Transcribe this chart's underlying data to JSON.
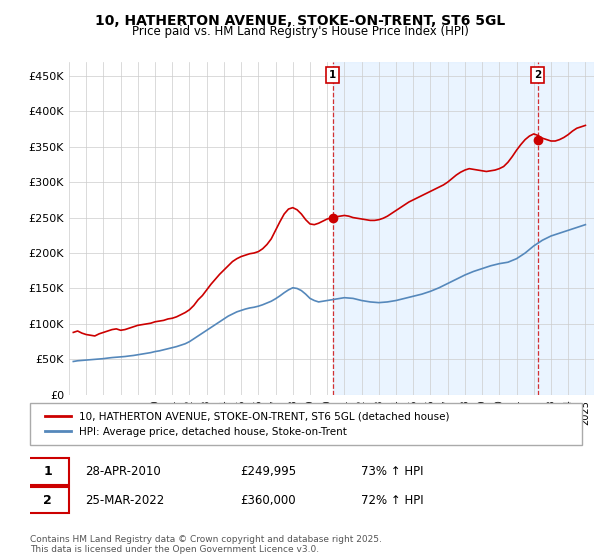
{
  "title_line1": "10, HATHERTON AVENUE, STOKE-ON-TRENT, ST6 5GL",
  "title_line2": "Price paid vs. HM Land Registry's House Price Index (HPI)",
  "legend_label1": "10, HATHERTON AVENUE, STOKE-ON-TRENT, ST6 5GL (detached house)",
  "legend_label2": "HPI: Average price, detached house, Stoke-on-Trent",
  "footnote": "Contains HM Land Registry data © Crown copyright and database right 2025.\nThis data is licensed under the Open Government Licence v3.0.",
  "annotation1": {
    "label": "1",
    "date": "28-APR-2010",
    "price": "£249,995",
    "pct": "73% ↑ HPI",
    "x_year": 2010.32,
    "y_val": 249995
  },
  "annotation2": {
    "label": "2",
    "date": "25-MAR-2022",
    "price": "£360,000",
    "pct": "72% ↑ HPI",
    "x_year": 2022.23,
    "y_val": 360000
  },
  "red_line_color": "#cc0000",
  "blue_line_color": "#5588bb",
  "shade_color": "#ddeeff",
  "dashed_line_color": "#cc0000",
  "ylim": [
    0,
    470000
  ],
  "yticks": [
    0,
    50000,
    100000,
    150000,
    200000,
    250000,
    300000,
    350000,
    400000,
    450000
  ],
  "ytick_labels": [
    "£0",
    "£50K",
    "£100K",
    "£150K",
    "£200K",
    "£250K",
    "£300K",
    "£350K",
    "£400K",
    "£450K"
  ],
  "xlim_start": 1995.0,
  "xlim_end": 2025.5,
  "red_data": {
    "years": [
      1995.25,
      1995.5,
      1995.75,
      1996.0,
      1996.25,
      1996.5,
      1996.75,
      1997.0,
      1997.25,
      1997.5,
      1997.75,
      1998.0,
      1998.25,
      1998.5,
      1998.75,
      1999.0,
      1999.25,
      1999.5,
      1999.75,
      2000.0,
      2000.25,
      2000.5,
      2000.75,
      2001.0,
      2001.25,
      2001.5,
      2001.75,
      2002.0,
      2002.25,
      2002.5,
      2002.75,
      2003.0,
      2003.25,
      2003.5,
      2003.75,
      2004.0,
      2004.25,
      2004.5,
      2004.75,
      2005.0,
      2005.25,
      2005.5,
      2005.75,
      2006.0,
      2006.25,
      2006.5,
      2006.75,
      2007.0,
      2007.25,
      2007.5,
      2007.75,
      2008.0,
      2008.25,
      2008.5,
      2008.75,
      2009.0,
      2009.25,
      2009.5,
      2009.75,
      2010.0,
      2010.32,
      2010.5,
      2010.75,
      2011.0,
      2011.25,
      2011.5,
      2011.75,
      2012.0,
      2012.25,
      2012.5,
      2012.75,
      2013.0,
      2013.25,
      2013.5,
      2013.75,
      2014.0,
      2014.25,
      2014.5,
      2014.75,
      2015.0,
      2015.25,
      2015.5,
      2015.75,
      2016.0,
      2016.25,
      2016.5,
      2016.75,
      2017.0,
      2017.25,
      2017.5,
      2017.75,
      2018.0,
      2018.25,
      2018.5,
      2018.75,
      2019.0,
      2019.25,
      2019.5,
      2019.75,
      2020.0,
      2020.25,
      2020.5,
      2020.75,
      2021.0,
      2021.25,
      2021.5,
      2021.75,
      2022.0,
      2022.23,
      2022.5,
      2022.75,
      2023.0,
      2023.25,
      2023.5,
      2023.75,
      2024.0,
      2024.25,
      2024.5,
      2024.75,
      2025.0
    ],
    "values": [
      88000,
      90000,
      87000,
      85000,
      84000,
      83000,
      86000,
      88000,
      90000,
      92000,
      93000,
      91000,
      92000,
      94000,
      96000,
      98000,
      99000,
      100000,
      101000,
      103000,
      104000,
      105000,
      107000,
      108000,
      110000,
      113000,
      116000,
      120000,
      126000,
      134000,
      140000,
      148000,
      156000,
      163000,
      170000,
      176000,
      182000,
      188000,
      192000,
      195000,
      197000,
      199000,
      200000,
      202000,
      206000,
      212000,
      220000,
      232000,
      244000,
      255000,
      262000,
      264000,
      261000,
      255000,
      247000,
      241000,
      240000,
      242000,
      245000,
      248000,
      249995,
      251000,
      252000,
      253000,
      252000,
      250000,
      249000,
      248000,
      247000,
      246000,
      246000,
      247000,
      249000,
      252000,
      256000,
      260000,
      264000,
      268000,
      272000,
      275000,
      278000,
      281000,
      284000,
      287000,
      290000,
      293000,
      296000,
      300000,
      305000,
      310000,
      314000,
      317000,
      319000,
      318000,
      317000,
      316000,
      315000,
      316000,
      317000,
      319000,
      322000,
      328000,
      336000,
      345000,
      353000,
      360000,
      365000,
      368000,
      366000,
      362000,
      360000,
      358000,
      358000,
      360000,
      363000,
      367000,
      372000,
      376000,
      378000,
      380000
    ]
  },
  "blue_data": {
    "years": [
      1995.25,
      1995.5,
      1995.75,
      1996.0,
      1996.25,
      1996.5,
      1996.75,
      1997.0,
      1997.25,
      1997.5,
      1997.75,
      1998.0,
      1998.25,
      1998.5,
      1998.75,
      1999.0,
      1999.25,
      1999.5,
      1999.75,
      2000.0,
      2000.25,
      2000.5,
      2000.75,
      2001.0,
      2001.25,
      2001.5,
      2001.75,
      2002.0,
      2002.25,
      2002.5,
      2002.75,
      2003.0,
      2003.25,
      2003.5,
      2003.75,
      2004.0,
      2004.25,
      2004.5,
      2004.75,
      2005.0,
      2005.25,
      2005.5,
      2005.75,
      2006.0,
      2006.25,
      2006.5,
      2006.75,
      2007.0,
      2007.25,
      2007.5,
      2007.75,
      2008.0,
      2008.25,
      2008.5,
      2008.75,
      2009.0,
      2009.25,
      2009.5,
      2009.75,
      2010.0,
      2010.5,
      2011.0,
      2011.5,
      2012.0,
      2012.5,
      2013.0,
      2013.5,
      2014.0,
      2014.5,
      2015.0,
      2015.5,
      2016.0,
      2016.5,
      2017.0,
      2017.5,
      2018.0,
      2018.5,
      2019.0,
      2019.5,
      2020.0,
      2020.5,
      2021.0,
      2021.5,
      2022.0,
      2022.5,
      2023.0,
      2023.5,
      2024.0,
      2024.5,
      2025.0
    ],
    "values": [
      47000,
      48000,
      48500,
      49000,
      49500,
      50000,
      50500,
      51000,
      51800,
      52500,
      53000,
      53500,
      54000,
      54800,
      55500,
      56500,
      57500,
      58500,
      59500,
      61000,
      62000,
      63500,
      65000,
      66500,
      68000,
      70000,
      72000,
      75000,
      79000,
      83000,
      87000,
      91000,
      95000,
      99000,
      103000,
      107000,
      111000,
      114000,
      117000,
      119000,
      121000,
      122500,
      123500,
      125000,
      127000,
      129500,
      132000,
      135500,
      139500,
      144000,
      148000,
      151000,
      150000,
      147000,
      142000,
      136000,
      133000,
      131000,
      132000,
      133000,
      135000,
      137000,
      136000,
      133000,
      131000,
      130000,
      131000,
      133000,
      136000,
      139000,
      142000,
      146000,
      151000,
      157000,
      163000,
      169000,
      174000,
      178000,
      182000,
      185000,
      187000,
      192000,
      200000,
      210000,
      218000,
      224000,
      228000,
      232000,
      236000,
      240000
    ]
  }
}
